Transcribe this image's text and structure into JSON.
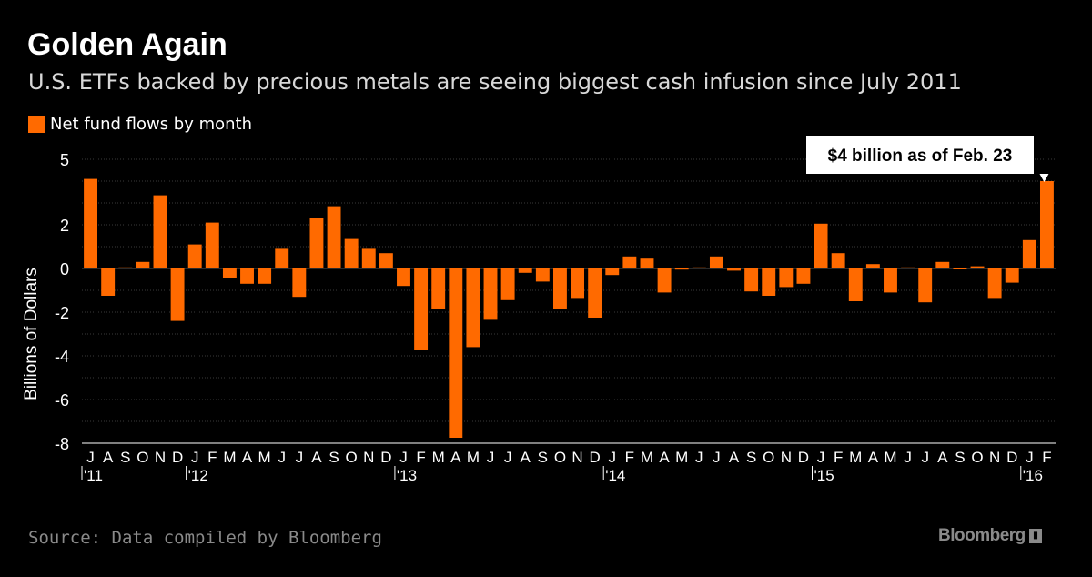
{
  "header": {
    "title": "Golden Again",
    "subtitle": "U.S. ETFs backed by precious metals are seeing biggest cash infusion since July 2011"
  },
  "legend": {
    "label": "Net fund flows by month"
  },
  "footer": {
    "source": "Source: Data compiled by Bloomberg",
    "brand": "Bloomberg"
  },
  "colors": {
    "bar": "#ff6a00",
    "grid": "#3a3a3a",
    "axis": "#ffffff",
    "background": "#000000"
  },
  "chart_data": {
    "type": "bar",
    "title": "Golden Again",
    "ylabel": "Billions of Dollars",
    "xlabel": "",
    "ylim": [
      -8,
      5
    ],
    "yticks": [
      5,
      2,
      0,
      -2,
      -4,
      -6,
      -8
    ],
    "grid": true,
    "series": [
      {
        "name": "Net fund flows by month",
        "color": "#ff6a00"
      }
    ],
    "categories": [
      "J",
      "A",
      "S",
      "O",
      "N",
      "D",
      "J",
      "F",
      "M",
      "A",
      "M",
      "J",
      "J",
      "A",
      "S",
      "O",
      "N",
      "D",
      "J",
      "F",
      "M",
      "A",
      "M",
      "J",
      "J",
      "A",
      "S",
      "O",
      "N",
      "D",
      "J",
      "F",
      "M",
      "A",
      "M",
      "J",
      "J",
      "A",
      "S",
      "O",
      "N",
      "D",
      "J",
      "F",
      "M",
      "A",
      "M",
      "J",
      "J",
      "A",
      "S",
      "O",
      "N",
      "D",
      "J",
      "F"
    ],
    "years": [
      {
        "label": "'11",
        "index": 0
      },
      {
        "label": "'12",
        "index": 6
      },
      {
        "label": "'13",
        "index": 18
      },
      {
        "label": "'14",
        "index": 30
      },
      {
        "label": "'15",
        "index": 42
      },
      {
        "label": "'16",
        "index": 54
      }
    ],
    "values": [
      4.1,
      -1.25,
      0.05,
      0.3,
      3.35,
      -2.4,
      1.1,
      2.1,
      -0.45,
      -0.7,
      -0.7,
      0.9,
      -1.3,
      2.3,
      2.85,
      1.35,
      0.9,
      0.7,
      -0.8,
      -3.75,
      -1.85,
      -7.75,
      -3.6,
      -2.35,
      -1.45,
      -0.2,
      -0.6,
      -1.85,
      -1.35,
      -2.25,
      -0.3,
      0.55,
      0.45,
      -1.1,
      -0.05,
      0.05,
      0.55,
      -0.1,
      -1.05,
      -1.25,
      -0.85,
      -0.7,
      2.05,
      0.7,
      -1.5,
      0.2,
      -1.1,
      0.05,
      -1.55,
      0.3,
      0.0,
      0.1,
      -1.35,
      -0.65,
      1.3,
      4.0
    ],
    "annotation": {
      "text": "$4 billion as of Feb. 23",
      "index": 55
    }
  }
}
